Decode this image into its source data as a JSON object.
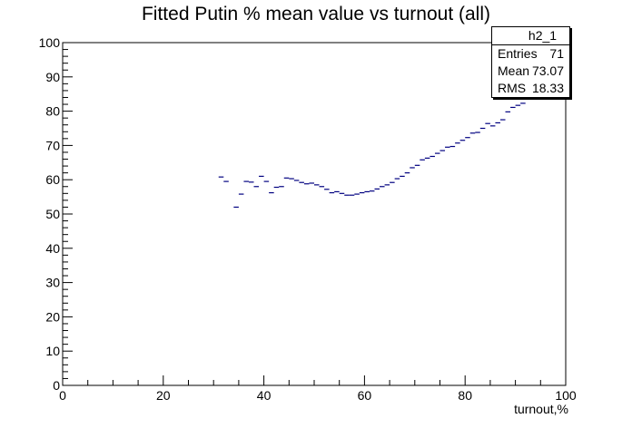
{
  "title": "Fitted Putin % mean value vs turnout (all)",
  "stats_box": {
    "name": "h2_1",
    "rows": [
      {
        "label": "Entries",
        "value": "71"
      },
      {
        "label": "Mean",
        "value": "73.07"
      },
      {
        "label": "RMS",
        "value": "18.33"
      }
    ]
  },
  "chart_data": {
    "type": "scatter",
    "title": "Fitted Putin % mean value vs turnout (all)",
    "xlabel": "turnout,%",
    "ylabel": "",
    "xlim": [
      0,
      100
    ],
    "ylim": [
      0,
      100
    ],
    "x_ticks": [
      "0",
      "20",
      "40",
      "60",
      "80",
      "100"
    ],
    "y_ticks": [
      "0",
      "10",
      "20",
      "30",
      "40",
      "50",
      "60",
      "70",
      "80",
      "90",
      "100"
    ],
    "grid": false,
    "bin_width": 1,
    "series": [
      {
        "color": "#000080",
        "x": [
          31.5,
          32.5,
          34.5,
          35.5,
          36.5,
          37.5,
          38.5,
          39.5,
          40.5,
          41.5,
          42.5,
          43.5,
          44.5,
          45.5,
          46.5,
          47.5,
          48.5,
          49.5,
          50.5,
          51.5,
          52.5,
          53.5,
          54.5,
          55.5,
          56.5,
          57.5,
          58.5,
          59.5,
          60.5,
          61.5,
          62.5,
          63.5,
          64.5,
          65.5,
          66.5,
          67.5,
          68.5,
          69.5,
          70.5,
          71.5,
          72.5,
          73.5,
          74.5,
          75.5,
          76.5,
          77.5,
          78.5,
          79.5,
          80.5,
          81.5,
          82.5,
          83.5,
          84.5,
          85.5,
          86.5,
          87.5,
          88.5,
          89.5,
          90.5,
          91.5
        ],
        "y": [
          60.8,
          59.5,
          52.0,
          55.8,
          59.5,
          59.3,
          58.0,
          61.0,
          59.5,
          56.2,
          57.8,
          58.0,
          60.5,
          60.3,
          59.8,
          59.2,
          58.8,
          59.0,
          58.5,
          58.0,
          57.2,
          56.2,
          56.5,
          56.0,
          55.5,
          55.5,
          55.8,
          56.2,
          56.5,
          56.7,
          57.3,
          58.0,
          58.5,
          59.2,
          60.3,
          61.0,
          62.0,
          63.5,
          64.2,
          65.8,
          66.3,
          66.8,
          67.7,
          68.5,
          69.5,
          69.7,
          70.7,
          71.5,
          72.3,
          73.6,
          73.8,
          75.0,
          76.4,
          75.7,
          76.6,
          77.5,
          79.8,
          81.1,
          81.7,
          82.3
        ]
      }
    ]
  }
}
